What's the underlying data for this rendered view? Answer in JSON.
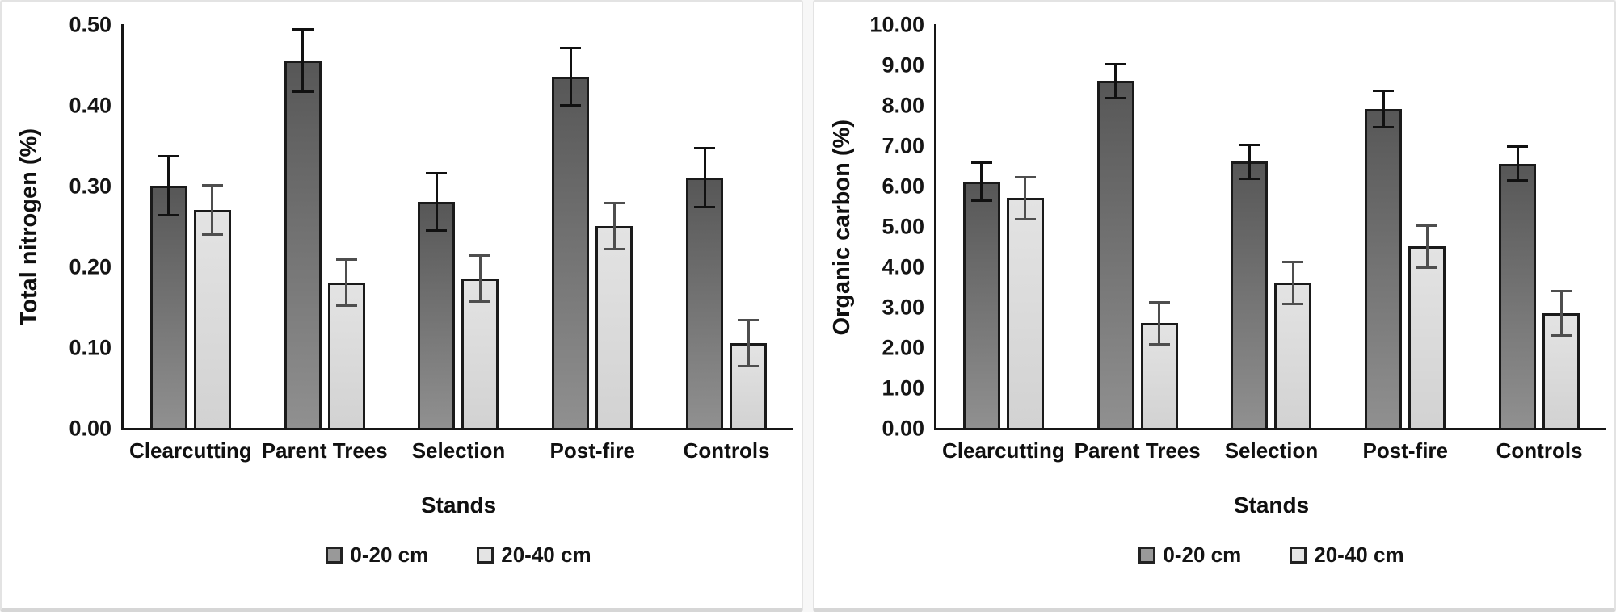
{
  "colors": {
    "bar_dark_top": "#575757",
    "bar_dark_bottom": "#909090",
    "bar_light": "#d9d9d9",
    "bar_outline": "#1a1a1a",
    "error_bar_dark": "#111111",
    "error_bar_light": "#4e4e4e",
    "axis_line": "#161616",
    "panel_border": "#d6d6d6",
    "background": "#ffffff"
  },
  "chart_data": [
    {
      "type": "bar",
      "title": "",
      "xlabel": "Stands",
      "ylabel": "Total nitrogen (%)",
      "categories": [
        "Clearcutting",
        "Parent Trees",
        "Selection",
        "Post-fire",
        "Controls"
      ],
      "series": [
        {
          "name": "0-20 cm",
          "values": [
            0.3,
            0.455,
            0.28,
            0.435,
            0.31
          ],
          "errors": [
            0.038,
            0.04,
            0.037,
            0.037,
            0.038
          ]
        },
        {
          "name": "20-40 cm",
          "values": [
            0.27,
            0.18,
            0.185,
            0.25,
            0.105
          ],
          "errors": [
            0.032,
            0.03,
            0.03,
            0.03,
            0.03
          ]
        }
      ],
      "ylim": [
        0,
        0.5
      ],
      "ytick_step": 0.1,
      "ytick_decimals": 2,
      "ytick_labels": [
        "0.00",
        "0.10",
        "0.20",
        "0.30",
        "0.40",
        "0.50"
      ],
      "grid": false,
      "legend_position": "bottom",
      "error_bars": true
    },
    {
      "type": "bar",
      "title": "",
      "xlabel": "Stands",
      "ylabel": "Organic carbon (%)",
      "categories": [
        "Clearcutting",
        "Parent Trees",
        "Selection",
        "Post-fire",
        "Controls"
      ],
      "series": [
        {
          "name": "0-20 cm",
          "values": [
            6.1,
            8.6,
            6.6,
            7.9,
            6.55
          ],
          "errors": [
            0.5,
            0.45,
            0.45,
            0.48,
            0.45
          ]
        },
        {
          "name": "20-40 cm",
          "values": [
            5.7,
            2.6,
            3.6,
            4.5,
            2.85
          ],
          "errors": [
            0.55,
            0.55,
            0.55,
            0.55,
            0.58
          ]
        }
      ],
      "ylim": [
        0,
        10
      ],
      "ytick_step": 1,
      "ytick_decimals": 2,
      "ytick_labels": [
        "0.00",
        "1.00",
        "2.00",
        "3.00",
        "4.00",
        "5.00",
        "6.00",
        "7.00",
        "8.00",
        "9.00",
        "10.00"
      ],
      "grid": false,
      "legend_position": "bottom",
      "error_bars": true
    }
  ]
}
